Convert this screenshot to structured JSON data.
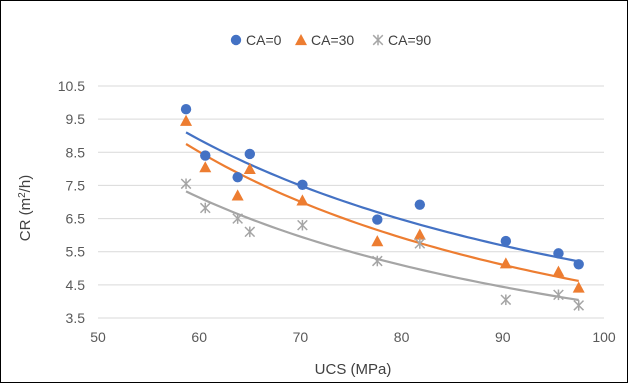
{
  "chart_data": {
    "type": "scatter",
    "title": "",
    "xlabel": "UCS (MPa)",
    "ylabel_main": "CR (m",
    "ylabel_sup": "2",
    "ylabel_tail": "/h)",
    "xlim": [
      50,
      100
    ],
    "ylim": [
      3.5,
      10.5
    ],
    "xticks": [
      "50",
      "60",
      "70",
      "80",
      "90",
      "100"
    ],
    "yticks": [
      "3.5",
      "4.5",
      "5.5",
      "6.5",
      "7.5",
      "8.5",
      "9.5",
      "10.5"
    ],
    "grid": "horizontal",
    "legend_position": "top",
    "series": [
      {
        "name": "CA=0",
        "marker": "circle",
        "color": "#4472C4",
        "x": [
          58.7,
          60.6,
          63.8,
          65.0,
          70.2,
          77.6,
          81.8,
          90.3,
          95.5,
          97.5
        ],
        "y": [
          9.8,
          8.4,
          7.75,
          8.45,
          7.52,
          6.47,
          6.92,
          5.82,
          5.45,
          5.12
        ],
        "trend": {
          "a": 9.1,
          "x0": 58.7,
          "b": -1.1,
          "x_range": [
            58.7,
            97.5
          ]
        }
      },
      {
        "name": "CA=30",
        "marker": "triangle",
        "color": "#ED7D31",
        "x": [
          58.7,
          60.6,
          63.8,
          65.0,
          70.2,
          77.6,
          81.8,
          90.3,
          95.5,
          97.5
        ],
        "y": [
          9.45,
          8.05,
          7.2,
          8.0,
          7.05,
          5.82,
          6.02,
          5.15,
          4.9,
          4.42
        ],
        "trend": {
          "a": 8.75,
          "x0": 58.7,
          "b": -1.26,
          "x_range": [
            58.7,
            97.5
          ]
        }
      },
      {
        "name": "CA=90",
        "marker": "star",
        "color": "#A5A5A5",
        "x": [
          58.7,
          60.6,
          63.8,
          65.0,
          70.2,
          77.6,
          81.8,
          90.3,
          95.5,
          97.5
        ],
        "y": [
          7.55,
          6.82,
          6.5,
          6.1,
          6.3,
          5.22,
          5.75,
          4.05,
          4.2,
          3.88
        ],
        "trend": {
          "a": 7.32,
          "x0": 58.7,
          "b": -1.17,
          "x_range": [
            58.7,
            97.5
          ]
        }
      }
    ]
  }
}
